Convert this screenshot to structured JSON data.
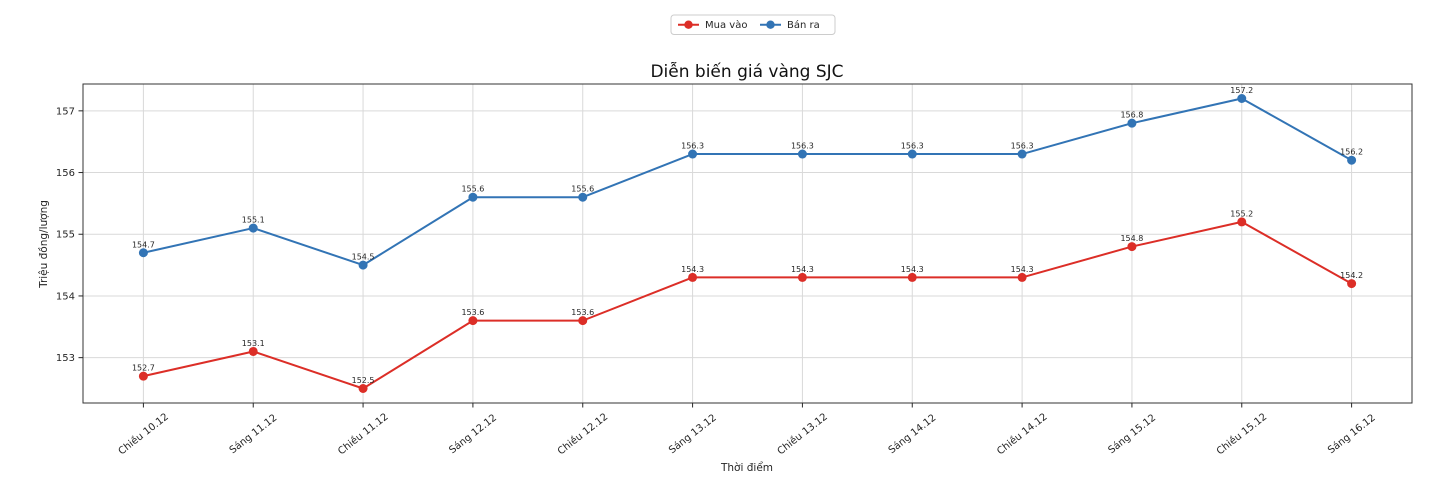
{
  "chart_data": {
    "type": "line",
    "title": "Diễn biến giá vàng SJC",
    "xlabel": "Thời điểm",
    "ylabel": "Triệu đồng/lượng",
    "categories": [
      "Chiều 10.12",
      "Sáng 11.12",
      "Chiều 11.12",
      "Sáng 12.12",
      "Chiều 12.12",
      "Sáng 13.12",
      "Chiều 13.12",
      "Sáng 14.12",
      "Chiều 14.12",
      "Sáng 15.12",
      "Chiều 15.12",
      "Sáng 16.12"
    ],
    "series": [
      {
        "name": "Mua vào",
        "color": "#dc2e27",
        "label_color": "#dc2e27",
        "values": [
          152.7,
          153.1,
          152.5,
          153.6,
          153.6,
          154.3,
          154.3,
          154.3,
          154.3,
          154.8,
          155.2,
          154.2
        ]
      },
      {
        "name": "Bán ra",
        "color": "#3274b5",
        "label_color": "#262626",
        "values": [
          154.7,
          155.1,
          154.5,
          155.6,
          155.6,
          156.3,
          156.3,
          156.3,
          156.3,
          156.8,
          157.2,
          156.2
        ]
      }
    ],
    "y_ticks": [
      153,
      154,
      155,
      156,
      157
    ],
    "ylim": [
      152.265,
      157.435
    ],
    "grid": true,
    "legend_position": "top-center"
  },
  "colors": {
    "grid": "#d9d9d9",
    "spine": "#333333",
    "tick": "#262626",
    "legend_border": "#cccccc",
    "background": "#ffffff"
  }
}
